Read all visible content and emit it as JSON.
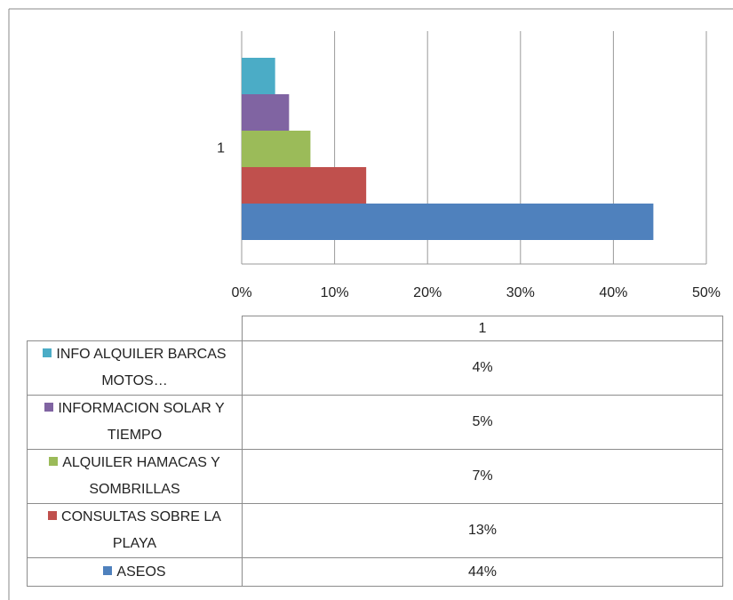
{
  "chart_data": {
    "type": "bar",
    "orientation": "horizontal",
    "categories": [
      "1"
    ],
    "series": [
      {
        "name": "ASEOS",
        "color": "#4f81bd",
        "values": [
          44.3
        ],
        "value_labels": [
          "44%"
        ]
      },
      {
        "name": "CONSULTAS SOBRE LA PLAYA",
        "color": "#c0504d",
        "values": [
          13.4
        ],
        "value_labels": [
          "13%"
        ]
      },
      {
        "name": "ALQUILER HAMACAS Y SOMBRILLAS",
        "color": "#9bbb59",
        "values": [
          7.4
        ],
        "value_labels": [
          "7%"
        ]
      },
      {
        "name": "INFORMACION SOLAR Y TIEMPO",
        "color": "#8064a2",
        "values": [
          5.1
        ],
        "value_labels": [
          "5%"
        ]
      },
      {
        "name": "INFO ALQUILER BARCAS MOTOS…",
        "color": "#4bacc6",
        "values": [
          3.6
        ],
        "value_labels": [
          "4%"
        ]
      }
    ],
    "xlim": [
      0,
      50
    ],
    "xticks": [
      {
        "value": 0,
        "label": "0%"
      },
      {
        "value": 10,
        "label": "10%"
      },
      {
        "value": 20,
        "label": "20%"
      },
      {
        "value": 30,
        "label": "30%"
      },
      {
        "value": 40,
        "label": "40%"
      },
      {
        "value": 50,
        "label": "50%"
      }
    ],
    "grid": true,
    "data_table": true
  }
}
